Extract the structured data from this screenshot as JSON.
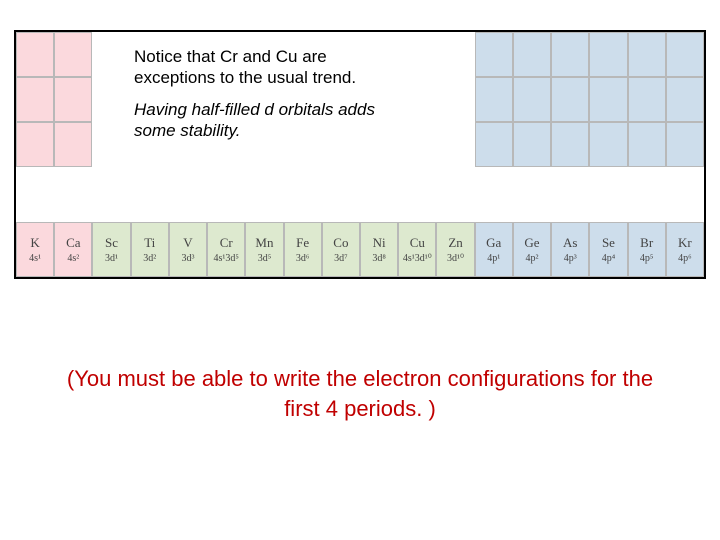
{
  "callout": {
    "line1": "Notice that Cr and Cu are exceptions to the usual trend.",
    "line2": "Having half-filled d orbitals adds some stability."
  },
  "footer": "(You must be able to write the electron configurations for the first 4 periods. )",
  "upperRows": [
    [
      {
        "color": "pink"
      },
      {
        "color": "pink"
      },
      {
        "color": "white"
      },
      {
        "color": "white"
      },
      {
        "color": "white"
      },
      {
        "color": "white"
      },
      {
        "color": "white"
      },
      {
        "color": "white"
      },
      {
        "color": "white"
      },
      {
        "color": "white"
      },
      {
        "color": "white"
      },
      {
        "color": "white"
      },
      {
        "color": "blue"
      },
      {
        "color": "blue"
      },
      {
        "color": "blue"
      },
      {
        "color": "blue"
      },
      {
        "color": "blue"
      },
      {
        "color": "blue"
      }
    ],
    [
      {
        "color": "pink"
      },
      {
        "color": "pink"
      },
      {
        "color": "white"
      },
      {
        "color": "white"
      },
      {
        "color": "white"
      },
      {
        "color": "white"
      },
      {
        "color": "white"
      },
      {
        "color": "white"
      },
      {
        "color": "white"
      },
      {
        "color": "white"
      },
      {
        "color": "white"
      },
      {
        "color": "white"
      },
      {
        "color": "blue"
      },
      {
        "color": "blue"
      },
      {
        "color": "blue"
      },
      {
        "color": "blue"
      },
      {
        "color": "blue"
      },
      {
        "color": "blue"
      }
    ],
    [
      {
        "color": "pink"
      },
      {
        "color": "pink"
      },
      {
        "color": "white"
      },
      {
        "color": "white"
      },
      {
        "color": "white"
      },
      {
        "color": "white"
      },
      {
        "color": "white"
      },
      {
        "color": "white"
      },
      {
        "color": "white"
      },
      {
        "color": "white"
      },
      {
        "color": "white"
      },
      {
        "color": "white"
      },
      {
        "color": "blue"
      },
      {
        "color": "blue"
      },
      {
        "color": "blue"
      },
      {
        "color": "blue"
      },
      {
        "color": "blue"
      },
      {
        "color": "blue"
      }
    ]
  ],
  "bottomRow": [
    {
      "sym": "K",
      "conf": "4s¹",
      "color": "pink"
    },
    {
      "sym": "Ca",
      "conf": "4s²",
      "color": "pink"
    },
    {
      "sym": "Sc",
      "conf": "3d¹",
      "color": "green"
    },
    {
      "sym": "Ti",
      "conf": "3d²",
      "color": "green"
    },
    {
      "sym": "V",
      "conf": "3d³",
      "color": "green"
    },
    {
      "sym": "Cr",
      "conf": "4s¹3d⁵",
      "color": "green"
    },
    {
      "sym": "Mn",
      "conf": "3d⁵",
      "color": "green"
    },
    {
      "sym": "Fe",
      "conf": "3d⁶",
      "color": "green"
    },
    {
      "sym": "Co",
      "conf": "3d⁷",
      "color": "green"
    },
    {
      "sym": "Ni",
      "conf": "3d⁸",
      "color": "green"
    },
    {
      "sym": "Cu",
      "conf": "4s¹3d¹⁰",
      "color": "green"
    },
    {
      "sym": "Zn",
      "conf": "3d¹⁰",
      "color": "green"
    },
    {
      "sym": "Ga",
      "conf": "4p¹",
      "color": "blue"
    },
    {
      "sym": "Ge",
      "conf": "4p²",
      "color": "blue"
    },
    {
      "sym": "As",
      "conf": "4p³",
      "color": "blue"
    },
    {
      "sym": "Se",
      "conf": "4p⁴",
      "color": "blue"
    },
    {
      "sym": "Br",
      "conf": "4p⁵",
      "color": "blue"
    },
    {
      "sym": "Kr",
      "conf": "4p⁶",
      "color": "blue"
    }
  ],
  "colors": {
    "pink": "#fbd9dd",
    "blue": "#cdddeb",
    "green": "#dde9cf",
    "white": "#ffffff"
  }
}
